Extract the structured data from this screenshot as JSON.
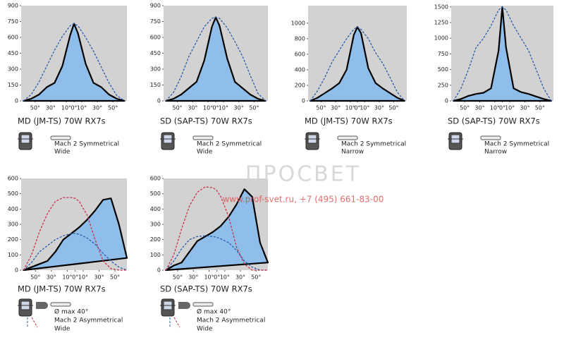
{
  "chart_data": [
    {
      "type": "line",
      "title": "MD (JM-TS) 70W RX7s",
      "caption": [
        "Mach 2 Symmetrical",
        "Wide"
      ],
      "x": [
        -65,
        -55,
        -45,
        -35,
        -25,
        -15,
        -5,
        0,
        5,
        15,
        25,
        35,
        45,
        55,
        65
      ],
      "xlim": [
        -68,
        68
      ],
      "xticks": [
        {
          "value": -50,
          "label": "50°"
        },
        {
          "value": -30,
          "label": "30°"
        },
        {
          "value": -10,
          "label": "10°"
        },
        {
          "value": 0,
          "label": "0°"
        },
        {
          "value": 10,
          "label": "10°"
        },
        {
          "value": 30,
          "label": "30°"
        },
        {
          "value": 50,
          "label": "50°"
        }
      ],
      "ylim": [
        0,
        900
      ],
      "yticks": [
        0,
        150,
        300,
        450,
        600,
        750,
        900
      ],
      "series": [
        {
          "color": "#000000",
          "fill": "#8ebee9",
          "style": "solid",
          "values": [
            0,
            20,
            60,
            130,
            170,
            330,
            620,
            730,
            640,
            350,
            170,
            130,
            60,
            20,
            0
          ]
        },
        {
          "color": "#2a5caa",
          "style": "dashed",
          "values": [
            0,
            60,
            180,
            330,
            480,
            610,
            710,
            730,
            710,
            600,
            470,
            320,
            170,
            50,
            0
          ]
        }
      ]
    },
    {
      "type": "line",
      "title": "SD (SAP-TS) 70W  RX7s",
      "caption": [
        "Mach 2 Symmetrical",
        "Wide"
      ],
      "x": [
        -65,
        -55,
        -45,
        -35,
        -25,
        -15,
        -5,
        0,
        5,
        15,
        25,
        35,
        45,
        55,
        65
      ],
      "xlim": [
        -68,
        68
      ],
      "xticks": [
        {
          "value": -50,
          "label": "50°"
        },
        {
          "value": -30,
          "label": "30°"
        },
        {
          "value": -10,
          "label": "10°"
        },
        {
          "value": 0,
          "label": "0°"
        },
        {
          "value": 10,
          "label": "10°"
        },
        {
          "value": 30,
          "label": "30°"
        },
        {
          "value": 50,
          "label": "50°"
        }
      ],
      "ylim": [
        0,
        900
      ],
      "yticks": [
        0,
        150,
        300,
        450,
        600,
        750,
        900
      ],
      "series": [
        {
          "color": "#000000",
          "fill": "#8ebee9",
          "style": "solid",
          "values": [
            0,
            20,
            60,
            120,
            180,
            380,
            700,
            790,
            710,
            400,
            180,
            120,
            60,
            20,
            0
          ]
        },
        {
          "color": "#2a5caa",
          "style": "dashed",
          "values": [
            0,
            80,
            230,
            420,
            560,
            700,
            780,
            790,
            780,
            690,
            560,
            420,
            240,
            70,
            0
          ]
        }
      ]
    },
    {
      "type": "line",
      "title": "MD (JM-TS) 70W  RX7s",
      "caption": [
        "Mach 2 Symmetrical",
        "Narrow"
      ],
      "x": [
        -65,
        -55,
        -45,
        -35,
        -25,
        -15,
        -5,
        0,
        5,
        15,
        25,
        35,
        45,
        55,
        65
      ],
      "xlim": [
        -68,
        68
      ],
      "xticks": [
        {
          "value": -50,
          "label": "50°"
        },
        {
          "value": -30,
          "label": "30°"
        },
        {
          "value": -10,
          "label": "10°"
        },
        {
          "value": 0,
          "label": "0°"
        },
        {
          "value": 10,
          "label": "10°"
        },
        {
          "value": 30,
          "label": "30°"
        },
        {
          "value": 50,
          "label": "50°"
        }
      ],
      "ylim": [
        0,
        1225
      ],
      "yticks": [
        0,
        200,
        400,
        600,
        800,
        1000
      ],
      "series": [
        {
          "color": "#000000",
          "fill": "#8ebee9",
          "style": "solid",
          "values": [
            0,
            40,
            100,
            160,
            230,
            400,
            850,
            950,
            870,
            420,
            230,
            160,
            100,
            40,
            0
          ]
        },
        {
          "color": "#2a5caa",
          "style": "dashed",
          "values": [
            0,
            130,
            300,
            500,
            650,
            800,
            920,
            950,
            920,
            800,
            620,
            480,
            300,
            110,
            0
          ]
        }
      ]
    },
    {
      "type": "line",
      "title": "SD (SAP-TS) 70W  RX7s",
      "caption": [
        "Mach 2 Symmetrical",
        "Narrow"
      ],
      "x": [
        -65,
        -55,
        -45,
        -35,
        -25,
        -15,
        -5,
        0,
        5,
        15,
        25,
        35,
        45,
        55,
        65
      ],
      "xlim": [
        -68,
        68
      ],
      "xticks": [
        {
          "value": -50,
          "label": "50°"
        },
        {
          "value": -30,
          "label": "30°"
        },
        {
          "value": -10,
          "label": "10°"
        },
        {
          "value": 0,
          "label": "0°"
        },
        {
          "value": 10,
          "label": "10°"
        },
        {
          "value": 30,
          "label": "30°"
        },
        {
          "value": 50,
          "label": "50°"
        }
      ],
      "ylim": [
        0,
        1520
      ],
      "yticks": [
        0,
        250,
        500,
        750,
        1000,
        1250,
        1500
      ],
      "series": [
        {
          "color": "#000000",
          "fill": "#8ebee9",
          "style": "solid",
          "values": [
            0,
            30,
            80,
            110,
            130,
            200,
            800,
            1500,
            850,
            200,
            140,
            110,
            70,
            30,
            0
          ]
        },
        {
          "color": "#2a5caa",
          "style": "dashed",
          "values": [
            0,
            200,
            500,
            850,
            1000,
            1200,
            1450,
            1500,
            1450,
            1200,
            1000,
            800,
            500,
            200,
            0
          ]
        }
      ]
    },
    {
      "type": "line",
      "title": "MD (JM-TS) 70W RX7s",
      "caption": [
        "Ø max 40°",
        "Mach 2 Asymmetrical",
        "Wide"
      ],
      "x": [
        -65,
        -55,
        -45,
        -35,
        -25,
        -15,
        -5,
        0,
        5,
        15,
        25,
        35,
        45,
        55,
        65
      ],
      "xlim": [
        -68,
        65
      ],
      "xticks": [
        {
          "value": -50,
          "label": "50°"
        },
        {
          "value": -30,
          "label": "30°"
        },
        {
          "value": -10,
          "label": "10°"
        },
        {
          "value": 0,
          "label": "0°"
        },
        {
          "value": 10,
          "label": "10°"
        },
        {
          "value": 30,
          "label": "30°"
        },
        {
          "value": 50,
          "label": "50°"
        }
      ],
      "ylim": [
        0,
        600
      ],
      "yticks": [
        0,
        100,
        200,
        300,
        400,
        500,
        600
      ],
      "series": [
        {
          "color": "#000000",
          "fill": "#8ebee9",
          "style": "solid",
          "values": [
            0,
            20,
            40,
            60,
            120,
            200,
            240,
            260,
            280,
            330,
            390,
            460,
            470,
            300,
            80
          ]
        },
        {
          "color": "#2a5caa",
          "style": "dashed",
          "values": [
            0,
            50,
            120,
            160,
            200,
            225,
            240,
            240,
            235,
            210,
            170,
            110,
            60,
            20,
            0
          ]
        },
        {
          "color": "#c8304a",
          "style": "dashed",
          "values": [
            0,
            100,
            250,
            370,
            450,
            475,
            475,
            470,
            450,
            360,
            200,
            60,
            10,
            0,
            0
          ]
        }
      ]
    },
    {
      "type": "line",
      "title": "SD (SAP-TS) 70W  RX7s",
      "caption": [
        "Ø max 40°",
        "Mach 2 Asymmetrical",
        "Wide"
      ],
      "x": [
        -65,
        -55,
        -45,
        -35,
        -25,
        -15,
        -5,
        0,
        5,
        15,
        25,
        35,
        45,
        55,
        65
      ],
      "xlim": [
        -68,
        65
      ],
      "xticks": [
        {
          "value": -50,
          "label": "50°"
        },
        {
          "value": -30,
          "label": "30°"
        },
        {
          "value": -10,
          "label": "10°"
        },
        {
          "value": 0,
          "label": "0°"
        },
        {
          "value": 10,
          "label": "10°"
        },
        {
          "value": 30,
          "label": "30°"
        },
        {
          "value": 50,
          "label": "50°"
        }
      ],
      "ylim": [
        0,
        600
      ],
      "yticks": [
        0,
        100,
        200,
        300,
        400,
        500,
        600
      ],
      "series": [
        {
          "color": "#000000",
          "fill": "#8ebee9",
          "style": "solid",
          "values": [
            0,
            30,
            50,
            120,
            190,
            220,
            250,
            270,
            290,
            350,
            430,
            530,
            480,
            180,
            50
          ]
        },
        {
          "color": "#2a5caa",
          "style": "dashed",
          "values": [
            0,
            60,
            140,
            200,
            220,
            225,
            220,
            215,
            205,
            180,
            130,
            60,
            20,
            0,
            0
          ]
        },
        {
          "color": "#c8304a",
          "style": "dashed",
          "values": [
            0,
            100,
            270,
            420,
            510,
            545,
            540,
            520,
            480,
            350,
            150,
            40,
            0,
            0,
            0
          ]
        }
      ]
    }
  ],
  "watermark": {
    "title": "ПРОСВЕТ",
    "contact": "www.prof-svet.ru, +7 (495) 661-83-00"
  }
}
